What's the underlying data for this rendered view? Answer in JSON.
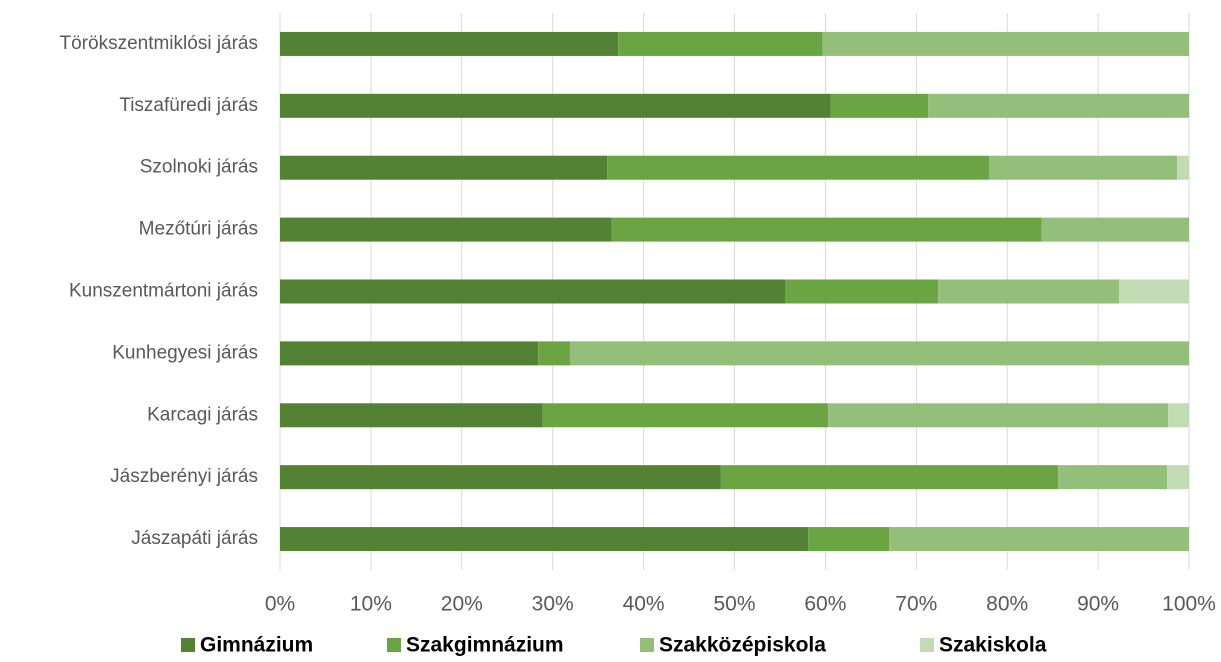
{
  "chart_data": {
    "type": "stacked_bar_horizontal",
    "categories": [
      "Törökszentmiklósi járás",
      "Tiszafüredi járás",
      "Szolnoki járás",
      "Mezőtúri járás",
      "Kunszentmártoni járás",
      "Kunhegyesi járás",
      "Karcagi járás",
      "Jászberényi járás",
      "Jászapáti járás"
    ],
    "series": [
      {
        "name": "Gimnázium",
        "color": "#548235",
        "values": [
          37.2,
          60.6,
          36.0,
          36.5,
          55.6,
          28.4,
          28.9,
          48.5,
          58.1
        ]
      },
      {
        "name": "Szakgimnázium",
        "color": "#6aa443",
        "values": [
          22.5,
          10.7,
          42.0,
          47.3,
          16.8,
          3.5,
          31.4,
          37.1,
          8.9
        ]
      },
      {
        "name": "Szakközépiskola",
        "color": "#93bf7a",
        "values": [
          40.3,
          28.7,
          20.7,
          16.2,
          19.9,
          68.1,
          37.4,
          12.0,
          33.0
        ]
      },
      {
        "name": "Szakiskola",
        "color": "#c2dbb4",
        "values": [
          0,
          0,
          1.3,
          0,
          7.7,
          0,
          2.3,
          2.4,
          0
        ]
      }
    ],
    "xlim": [
      0,
      100
    ],
    "xticks": [
      {
        "value": 0,
        "label": "0%"
      },
      {
        "value": 10,
        "label": "10%"
      },
      {
        "value": 20,
        "label": "20%"
      },
      {
        "value": 30,
        "label": "30%"
      },
      {
        "value": 40,
        "label": "40%"
      },
      {
        "value": 50,
        "label": "50%"
      },
      {
        "value": 60,
        "label": "60%"
      },
      {
        "value": 70,
        "label": "70%"
      },
      {
        "value": 80,
        "label": "80%"
      },
      {
        "value": 90,
        "label": "90%"
      },
      {
        "value": 100,
        "label": "100%"
      }
    ],
    "grid": true,
    "legend": "bottom"
  }
}
